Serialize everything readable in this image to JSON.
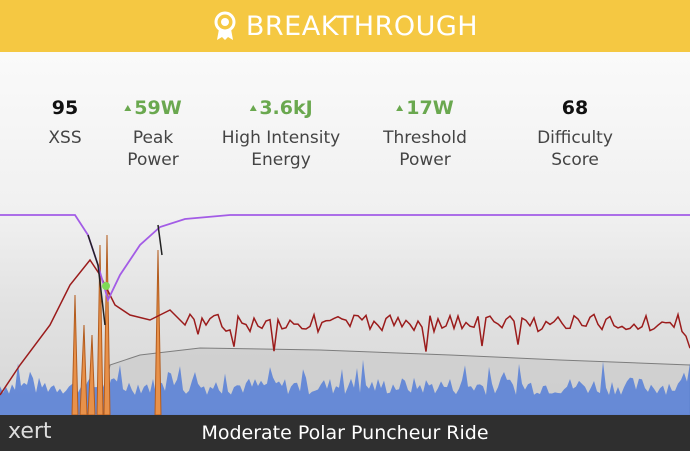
{
  "header": {
    "title": "BREAKTHROUGH"
  },
  "stats": [
    {
      "value": "95",
      "label": "XSS"
    },
    {
      "value": "59W",
      "label": "Peak\nPower"
    },
    {
      "value": "3.6kJ",
      "label": "High Intensity\nEnergy"
    },
    {
      "value": "17W",
      "label": "Threshold\nPower"
    },
    {
      "value": "68",
      "label": "Difficulty Score"
    }
  ],
  "footer": {
    "logo": "xert",
    "ride": "Moderate Polar Puncheur Ride"
  }
}
